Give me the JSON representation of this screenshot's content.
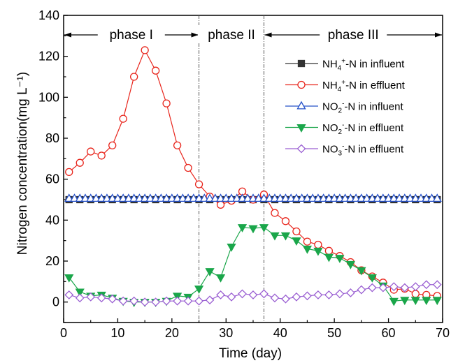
{
  "chart_data": {
    "type": "line",
    "xlabel": "Time (day)",
    "ylabel": "Nitrogen concentration(mg L⁻¹)",
    "xlim": [
      0,
      70
    ],
    "ylim": [
      -10,
      140
    ],
    "xticks": [
      0,
      10,
      20,
      30,
      40,
      50,
      60,
      70
    ],
    "yticks": [
      0,
      20,
      40,
      60,
      80,
      100,
      120,
      140
    ],
    "grid": false,
    "legend_position": "right",
    "phases": [
      {
        "label": "phase I",
        "start": 0,
        "end": 25
      },
      {
        "label": "phase II",
        "start": 25,
        "end": 37
      },
      {
        "label": "phase III",
        "start": 37,
        "end": 70
      }
    ],
    "series": [
      {
        "name": "NH4+-N in influent",
        "legend": {
          "base": "NH",
          "sub": "4",
          "sup": "+",
          "rest": "-N in influent"
        },
        "marker": "square",
        "filled": true,
        "color": "#333333",
        "x": [
          1,
          3,
          5,
          7,
          9,
          11,
          13,
          15,
          17,
          19,
          21,
          23,
          25,
          27,
          29,
          31,
          33,
          35,
          37,
          39,
          41,
          43,
          45,
          47,
          49,
          51,
          53,
          55,
          57,
          59,
          61,
          63,
          65,
          67,
          69
        ],
        "y": [
          50,
          50,
          50,
          50,
          50,
          50,
          50,
          50,
          50,
          50,
          50,
          50,
          50,
          50,
          50,
          50,
          50,
          50,
          50,
          50,
          50,
          50,
          50,
          50,
          50,
          50,
          50,
          50,
          50,
          50,
          50,
          50,
          50,
          50,
          50
        ]
      },
      {
        "name": "NH4+-N in effluent",
        "legend": {
          "base": "NH",
          "sub": "4",
          "sup": "+",
          "rest": "-N in effluent"
        },
        "marker": "circle",
        "filled": false,
        "color": "#e8251c",
        "x": [
          1,
          3,
          5,
          7,
          9,
          11,
          13,
          15,
          17,
          19,
          21,
          23,
          25,
          27,
          29,
          31,
          33,
          35,
          37,
          39,
          41,
          43,
          45,
          47,
          49,
          51,
          53,
          55,
          57,
          59,
          61,
          63,
          65,
          67,
          69
        ],
        "y": [
          63.5,
          68,
          73.5,
          71.5,
          76.5,
          89.5,
          110,
          123,
          113,
          97,
          76.5,
          65.5,
          57.5,
          51.5,
          47.5,
          49.5,
          54,
          50,
          52.5,
          43.5,
          39.5,
          34.5,
          29.5,
          28,
          25,
          22.5,
          19.5,
          15.5,
          12.5,
          9.5,
          6,
          6.5,
          4,
          3.5,
          3
        ]
      },
      {
        "name": "NO2--N in influent",
        "legend": {
          "base": "NO",
          "sub": "2",
          "sup": "-",
          "rest": "-N in influent"
        },
        "marker": "triangle-up",
        "filled": false,
        "color": "#2450c8",
        "x": [
          1,
          2,
          3,
          4,
          5,
          6,
          7,
          8,
          9,
          10,
          11,
          12,
          13,
          14,
          15,
          16,
          17,
          18,
          19,
          20,
          21,
          22,
          23,
          24,
          25,
          26,
          27,
          28,
          29,
          30,
          31,
          32,
          33,
          34,
          35,
          36,
          37,
          38,
          39,
          40,
          41,
          42,
          43,
          44,
          45,
          46,
          47,
          48,
          49,
          50,
          51,
          52,
          53,
          54,
          55,
          56,
          57,
          58,
          59,
          60,
          61,
          62,
          63,
          64,
          65,
          66,
          67,
          68,
          69
        ],
        "y": [
          50.5,
          50.5,
          50.5,
          50.5,
          50.5,
          50.5,
          50.5,
          50.5,
          50.5,
          50.5,
          50.5,
          50.5,
          50.5,
          50.5,
          50.5,
          50.5,
          50.5,
          50.5,
          50.5,
          50.5,
          50.5,
          50.5,
          50.5,
          50.5,
          50.5,
          50.5,
          50.5,
          50.5,
          50.5,
          50.5,
          50.5,
          50.5,
          50.5,
          50.5,
          50.5,
          50.5,
          50.5,
          50.5,
          50.5,
          50.5,
          50.5,
          50.5,
          50.5,
          50.5,
          50.5,
          50.5,
          50.5,
          50.5,
          50.5,
          50.5,
          50.5,
          50.5,
          50.5,
          50.5,
          50.5,
          50.5,
          50.5,
          50.5,
          50.5,
          50.5,
          50.5,
          50.5,
          50.5,
          50.5,
          50.5,
          50.5,
          50.5,
          50.5,
          50.5
        ]
      },
      {
        "name": "NO2--N in effluent",
        "legend": {
          "base": "NO",
          "sub": "2",
          "sup": "-",
          "rest": "-N in effluent"
        },
        "marker": "triangle-down",
        "filled": true,
        "color": "#1aa64a",
        "x": [
          1,
          3,
          5,
          7,
          9,
          11,
          13,
          15,
          17,
          19,
          21,
          23,
          25,
          27,
          29,
          31,
          33,
          35,
          37,
          39,
          41,
          43,
          45,
          47,
          49,
          51,
          53,
          55,
          57,
          59,
          61,
          63,
          65,
          67,
          69
        ],
        "y": [
          12,
          5,
          3,
          3.5,
          2,
          0.5,
          0,
          0,
          0,
          0.5,
          3,
          2.5,
          6.5,
          15,
          12,
          27,
          36.5,
          36,
          36.5,
          32.5,
          32.5,
          30,
          26,
          25,
          22,
          21.5,
          18.5,
          15.5,
          12,
          8,
          0.5,
          1,
          1,
          1,
          1
        ]
      },
      {
        "name": "NO3--N in effluent",
        "legend": {
          "base": "NO",
          "sub": "3",
          "sup": "-",
          "rest": "-N in effluent"
        },
        "marker": "diamond",
        "filled": false,
        "color": "#9a5fd2",
        "x": [
          1,
          3,
          5,
          7,
          9,
          11,
          13,
          15,
          17,
          19,
          21,
          23,
          25,
          27,
          29,
          31,
          33,
          35,
          37,
          39,
          41,
          43,
          45,
          47,
          49,
          51,
          53,
          55,
          57,
          59,
          61,
          63,
          65,
          67,
          69
        ],
        "y": [
          3.5,
          2,
          2.5,
          2,
          1.5,
          0.5,
          0.5,
          0,
          0,
          0.5,
          0.5,
          0.5,
          0.5,
          1,
          3.5,
          2.5,
          4,
          3.5,
          4,
          2,
          1.5,
          2.5,
          3,
          3.5,
          3.5,
          4,
          4.5,
          6,
          7,
          7,
          7.5,
          7,
          7.5,
          8.5,
          8.5
        ]
      }
    ]
  }
}
